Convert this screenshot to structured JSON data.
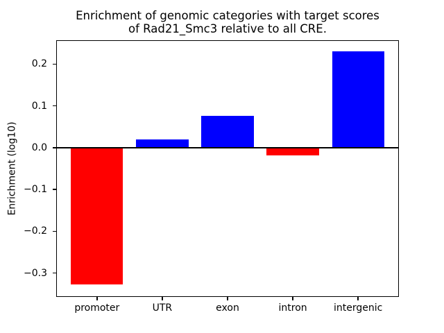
{
  "chart_data": {
    "type": "bar",
    "title_lines": [
      "Enrichment of genomic categories with target scores",
      "of Rad21_Smc3 relative to all CRE."
    ],
    "xlabel": "",
    "ylabel": "Enrichment (log10)",
    "categories": [
      "promoter",
      "UTR",
      "exon",
      "intron",
      "intergenic"
    ],
    "values": [
      -0.327,
      0.02,
      0.076,
      -0.018,
      0.23
    ],
    "bar_colors": [
      "#ff0000",
      "#0000ff",
      "#0000ff",
      "#ff0000",
      "#0000ff"
    ],
    "positive_color": "#0000ff",
    "negative_color": "#ff0000",
    "yticks": [
      0.2,
      0.1,
      0.0,
      -0.1,
      -0.2,
      -0.3
    ],
    "ytick_labels": [
      "0.2",
      "0.1",
      "0.0",
      "−0.1",
      "−0.2",
      "−0.3"
    ],
    "ylim": [
      -0.357,
      0.257
    ],
    "xlim": [
      -0.625,
      4.625
    ],
    "bar_width_fraction": 0.8,
    "grid": false,
    "legend": "none",
    "zero_line": true,
    "axis_color": "#000000",
    "text_color": "#000000",
    "background_color": "#ffffff"
  }
}
